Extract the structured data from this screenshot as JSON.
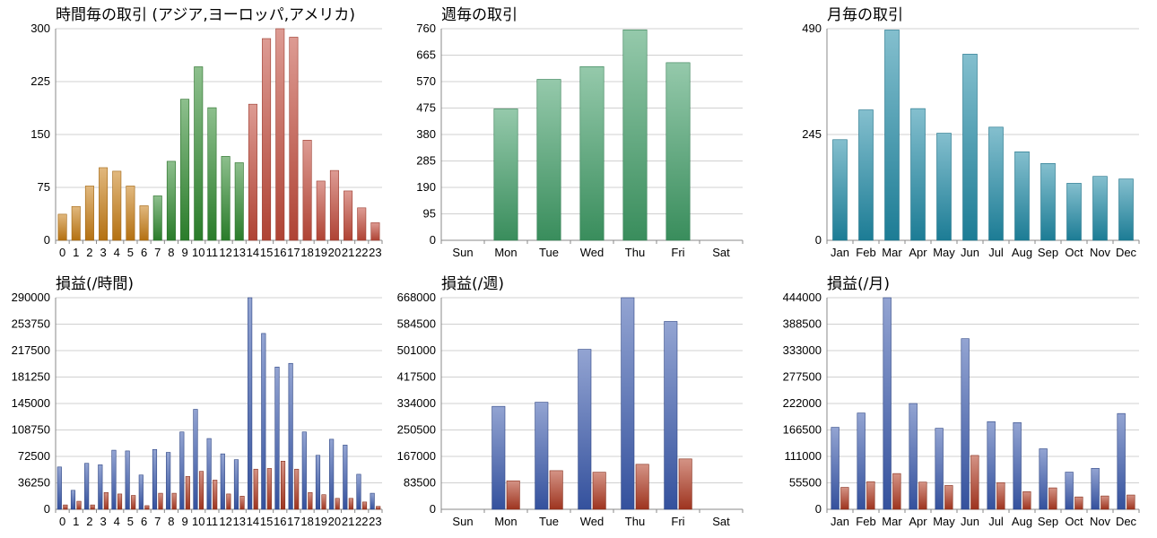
{
  "colors": {
    "asia": "#c87d14",
    "europe": "#2f8a2f",
    "america": "#c24a3a",
    "weekly": "#3f9d66",
    "monthly": "#1f8aa6",
    "profit_blue": "#3a5aae",
    "profit_red": "#b03a22"
  },
  "chart_data": [
    {
      "id": "hourly_trades",
      "type": "bar",
      "title": "時間毎の取引 (アジア,ヨーロッパ,アメリカ)",
      "categories": [
        "0",
        "1",
        "2",
        "3",
        "4",
        "5",
        "6",
        "7",
        "8",
        "9",
        "10",
        "11",
        "12",
        "13",
        "14",
        "15",
        "16",
        "17",
        "18",
        "19",
        "20",
        "21",
        "22",
        "23"
      ],
      "values": [
        37,
        48,
        77,
        103,
        98,
        77,
        49,
        63,
        112,
        200,
        246,
        188,
        119,
        110,
        193,
        286,
        300,
        288,
        142,
        84,
        99,
        70,
        46,
        25
      ],
      "segments": [
        {
          "name": "アジア",
          "from": 0,
          "to": 6,
          "color": "asia"
        },
        {
          "name": "ヨーロッパ",
          "from": 7,
          "to": 13,
          "color": "europe"
        },
        {
          "name": "アメリカ",
          "from": 14,
          "to": 23,
          "color": "america"
        }
      ],
      "ylim": [
        0,
        300
      ],
      "yticks": [
        "0",
        "75",
        "150",
        "225",
        "300"
      ],
      "grid": true
    },
    {
      "id": "weekly_trades",
      "type": "bar",
      "title": "週毎の取引",
      "categories": [
        "Sun",
        "Mon",
        "Tue",
        "Wed",
        "Thu",
        "Fri",
        "Sat"
      ],
      "values": [
        0,
        472,
        578,
        624,
        756,
        638,
        0
      ],
      "color": "weekly",
      "ylim": [
        0,
        760
      ],
      "yticks": [
        "0",
        "95",
        "190",
        "285",
        "380",
        "475",
        "570",
        "665",
        "760"
      ],
      "grid": true
    },
    {
      "id": "monthly_trades",
      "type": "bar",
      "title": "月毎の取引",
      "categories": [
        "Jan",
        "Feb",
        "Mar",
        "Apr",
        "May",
        "Jun",
        "Jul",
        "Aug",
        "Sep",
        "Oct",
        "Nov",
        "Dec"
      ],
      "values": [
        233,
        302,
        487,
        305,
        248,
        431,
        262,
        205,
        178,
        132,
        148,
        142
      ],
      "color": "monthly",
      "ylim": [
        0,
        490
      ],
      "yticks": [
        "0",
        "245",
        "490"
      ],
      "grid": true
    },
    {
      "id": "hourly_profit",
      "type": "bar",
      "title": "損益(/時間)",
      "categories": [
        "0",
        "1",
        "2",
        "3",
        "4",
        "5",
        "6",
        "7",
        "8",
        "9",
        "10",
        "11",
        "12",
        "13",
        "14",
        "15",
        "16",
        "17",
        "18",
        "19",
        "20",
        "21",
        "22",
        "23"
      ],
      "series": [
        {
          "values": [
            58000,
            26000,
            63000,
            61000,
            81000,
            80000,
            47000,
            82000,
            78000,
            106000,
            137000,
            97000,
            76000,
            68000,
            290000,
            241000,
            195000,
            200000,
            106000,
            74000,
            96000,
            88000,
            48000,
            22000
          ],
          "color": "profit_blue"
        },
        {
          "values": [
            6000,
            11000,
            6000,
            23000,
            21000,
            19000,
            5000,
            22000,
            22000,
            45000,
            52000,
            40000,
            21000,
            18000,
            55000,
            56000,
            66000,
            55000,
            23000,
            20000,
            15000,
            15000,
            10000,
            4000
          ],
          "color": "profit_red"
        }
      ],
      "ylim": [
        0,
        290000
      ],
      "yticks": [
        "0",
        "36250",
        "72500",
        "108750",
        "145000",
        "181250",
        "217500",
        "253750",
        "290000"
      ],
      "grid": true
    },
    {
      "id": "weekly_profit",
      "type": "bar",
      "title": "損益(/週)",
      "categories": [
        "Sun",
        "Mon",
        "Tue",
        "Wed",
        "Thu",
        "Fri",
        "Sat"
      ],
      "series": [
        {
          "values": [
            0,
            325000,
            338000,
            505000,
            668000,
            593000,
            0
          ],
          "color": "profit_blue"
        },
        {
          "values": [
            0,
            90000,
            122000,
            117000,
            142000,
            159000,
            0
          ],
          "color": "profit_red"
        }
      ],
      "ylim": [
        0,
        668000
      ],
      "yticks": [
        "0",
        "83500",
        "167000",
        "250500",
        "334000",
        "417500",
        "501000",
        "584500",
        "668000"
      ],
      "grid": true
    },
    {
      "id": "monthly_profit",
      "type": "bar",
      "title": "損益(/月)",
      "categories": [
        "Jan",
        "Feb",
        "Mar",
        "Apr",
        "May",
        "Jun",
        "Jul",
        "Aug",
        "Sep",
        "Oct",
        "Nov",
        "Dec"
      ],
      "series": [
        {
          "values": [
            172000,
            202000,
            444000,
            222000,
            170000,
            358000,
            184000,
            182000,
            127000,
            78000,
            86000,
            201000
          ],
          "color": "profit_blue"
        },
        {
          "values": [
            46000,
            58000,
            75000,
            57000,
            50000,
            113000,
            56000,
            37000,
            45000,
            26000,
            28000,
            30000
          ],
          "color": "profit_red"
        }
      ],
      "ylim": [
        0,
        444000
      ],
      "yticks": [
        "0",
        "55500",
        "111000",
        "166500",
        "222000",
        "277500",
        "333000",
        "388500",
        "444000"
      ],
      "grid": true
    }
  ]
}
